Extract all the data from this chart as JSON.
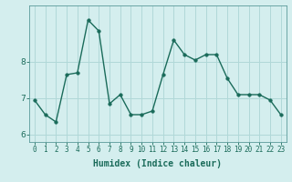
{
  "x": [
    0,
    1,
    2,
    3,
    4,
    5,
    6,
    7,
    8,
    9,
    10,
    11,
    12,
    13,
    14,
    15,
    16,
    17,
    18,
    19,
    20,
    21,
    22,
    23
  ],
  "y": [
    6.95,
    6.55,
    6.35,
    7.65,
    7.7,
    9.15,
    8.85,
    6.85,
    7.1,
    6.55,
    6.55,
    6.65,
    7.65,
    8.6,
    8.2,
    8.05,
    8.2,
    8.2,
    7.55,
    7.1,
    7.1,
    7.1,
    6.95,
    6.55
  ],
  "line_color": "#1a6b5a",
  "marker": "o",
  "marker_size": 2.5,
  "bg_color": "#d4eeee",
  "grid_color": "#b0d8d8",
  "xlabel": "Humidex (Indice chaleur)",
  "ylim_min": 5.8,
  "ylim_max": 9.55,
  "yticks": [
    6,
    7,
    8
  ],
  "xlabel_color": "#1a6b5a",
  "tick_label_color": "#1a6b5a",
  "xtick_fontsize": 5.5,
  "ytick_fontsize": 6.5,
  "xlabel_fontsize": 7.0,
  "linewidth": 1.0
}
